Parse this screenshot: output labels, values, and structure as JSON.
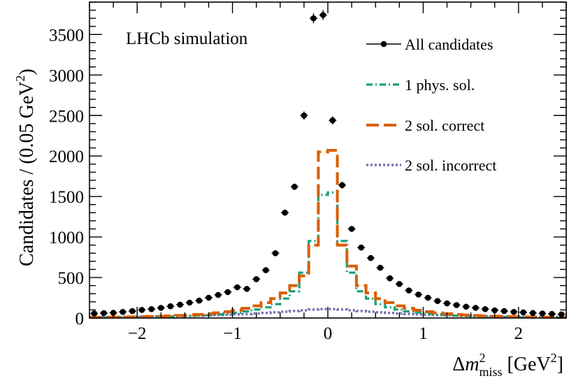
{
  "chart_data": {
    "type": "histogram",
    "annotation": "LHCb simulation",
    "xlabel": {
      "prefix": "Δ",
      "var": "m",
      "sup": "2",
      "sub": "miss",
      "unit_open": " [GeV",
      "unit_sup": "2",
      "unit_close": "]"
    },
    "ylabel": {
      "main": "Candidates / (0.05 GeV",
      "sup": "2",
      "close": ")"
    },
    "xlim": [
      -2.5,
      2.5
    ],
    "ylim": [
      0,
      3900
    ],
    "x_ticks": [
      -2,
      -1,
      0,
      1,
      2
    ],
    "x_tick_labels": [
      "−2",
      "−1",
      "0",
      "1",
      "2"
    ],
    "y_ticks": [
      0,
      500,
      1000,
      1500,
      2000,
      2500,
      3000,
      3500
    ],
    "y_tick_labels": [
      "0",
      "500",
      "1000",
      "1500",
      "2000",
      "2500",
      "3000",
      "3500"
    ],
    "legend": [
      "All candidates",
      "1 phys. sol.",
      "2 sol. correct",
      "2 sol. incorrect"
    ],
    "series": [
      {
        "name": "All candidates",
        "style": "points",
        "color": "#000000",
        "x": [
          -2.45,
          -2.35,
          -2.25,
          -2.15,
          -2.05,
          -1.95,
          -1.85,
          -1.75,
          -1.65,
          -1.55,
          -1.45,
          -1.35,
          -1.25,
          -1.15,
          -1.05,
          -0.95,
          -0.85,
          -0.75,
          -0.65,
          -0.55,
          -0.45,
          -0.35,
          -0.25,
          -0.15,
          -0.05,
          0.05,
          0.15,
          0.25,
          0.35,
          0.45,
          0.55,
          0.65,
          0.75,
          0.85,
          0.95,
          1.05,
          1.15,
          1.25,
          1.35,
          1.45,
          1.55,
          1.65,
          1.75,
          1.85,
          1.95,
          2.05,
          2.15,
          2.25,
          2.35,
          2.45
        ],
        "y": [
          55,
          60,
          65,
          75,
          85,
          100,
          110,
          125,
          145,
          165,
          190,
          215,
          250,
          285,
          320,
          380,
          360,
          480,
          590,
          800,
          1300,
          1620,
          2500,
          3700,
          3740,
          2440,
          1640,
          1100,
          870,
          740,
          620,
          490,
          420,
          340,
          290,
          250,
          210,
          180,
          160,
          140,
          125,
          110,
          95,
          85,
          75,
          70,
          62,
          56,
          50,
          45
        ]
      },
      {
        "name": "1 phys. sol.",
        "style": "dashdot",
        "color": "#1b9e77",
        "edges": [
          -2.5,
          -2.4,
          -2.3,
          -2.2,
          -2.1,
          -2.0,
          -1.9,
          -1.8,
          -1.7,
          -1.6,
          -1.5,
          -1.4,
          -1.3,
          -1.2,
          -1.1,
          -1.0,
          -0.9,
          -0.8,
          -0.7,
          -0.6,
          -0.5,
          -0.4,
          -0.3,
          -0.2,
          -0.1,
          0.0,
          0.1,
          0.2,
          0.3,
          0.4,
          0.5,
          0.6,
          0.7,
          0.8,
          0.9,
          1.0,
          1.1,
          1.2,
          1.3,
          1.4,
          1.5,
          1.6,
          1.7,
          1.8,
          1.9,
          2.0,
          2.1,
          2.2,
          2.3,
          2.4,
          2.5
        ],
        "y": [
          5,
          6,
          7,
          8,
          9,
          11,
          13,
          15,
          18,
          21,
          25,
          30,
          36,
          44,
          54,
          66,
          82,
          104,
          132,
          172,
          240,
          330,
          560,
          950,
          1520,
          1550,
          950,
          560,
          330,
          240,
          172,
          132,
          104,
          82,
          66,
          54,
          44,
          36,
          30,
          25,
          21,
          18,
          15,
          13,
          11,
          9,
          8,
          7,
          6,
          5
        ]
      },
      {
        "name": "2 sol. correct",
        "style": "dashed",
        "color": "#d95f02",
        "edges": [
          -2.5,
          -2.4,
          -2.3,
          -2.2,
          -2.1,
          -2.0,
          -1.9,
          -1.8,
          -1.7,
          -1.6,
          -1.5,
          -1.4,
          -1.3,
          -1.2,
          -1.1,
          -1.0,
          -0.9,
          -0.8,
          -0.7,
          -0.6,
          -0.5,
          -0.4,
          -0.3,
          -0.2,
          -0.1,
          0.0,
          0.1,
          0.2,
          0.3,
          0.4,
          0.5,
          0.6,
          0.7,
          0.8,
          0.9,
          1.0,
          1.1,
          1.2,
          1.3,
          1.4,
          1.5,
          1.6,
          1.7,
          1.8,
          1.9,
          2.0,
          2.1,
          2.2,
          2.3,
          2.4,
          2.5
        ],
        "y": [
          8,
          9,
          10,
          12,
          14,
          16,
          19,
          22,
          26,
          31,
          37,
          44,
          53,
          64,
          78,
          96,
          120,
          150,
          190,
          240,
          310,
          400,
          520,
          900,
          2050,
          2070,
          900,
          640,
          400,
          310,
          240,
          190,
          150,
          120,
          96,
          78,
          64,
          53,
          44,
          37,
          31,
          26,
          22,
          19,
          16,
          14,
          12,
          10,
          9,
          8
        ]
      },
      {
        "name": "2 sol. incorrect",
        "style": "dotted",
        "color": "#7570b3",
        "edges": [
          -2.5,
          -2.4,
          -2.3,
          -2.2,
          -2.1,
          -2.0,
          -1.9,
          -1.8,
          -1.7,
          -1.6,
          -1.5,
          -1.4,
          -1.3,
          -1.2,
          -1.1,
          -1.0,
          -0.9,
          -0.8,
          -0.7,
          -0.6,
          -0.5,
          -0.4,
          -0.3,
          -0.2,
          -0.1,
          0.0,
          0.1,
          0.2,
          0.3,
          0.4,
          0.5,
          0.6,
          0.7,
          0.8,
          0.9,
          1.0,
          1.1,
          1.2,
          1.3,
          1.4,
          1.5,
          1.6,
          1.7,
          1.8,
          1.9,
          2.0,
          2.1,
          2.2,
          2.3,
          2.4,
          2.5
        ],
        "y": [
          10,
          11,
          12,
          13,
          14,
          15,
          17,
          19,
          21,
          23,
          26,
          29,
          32,
          36,
          40,
          45,
          50,
          56,
          62,
          70,
          78,
          86,
          95,
          104,
          110,
          110,
          104,
          95,
          86,
          78,
          70,
          62,
          56,
          50,
          45,
          40,
          36,
          32,
          29,
          26,
          23,
          21,
          19,
          17,
          15,
          14,
          13,
          12,
          11,
          10
        ]
      }
    ]
  }
}
